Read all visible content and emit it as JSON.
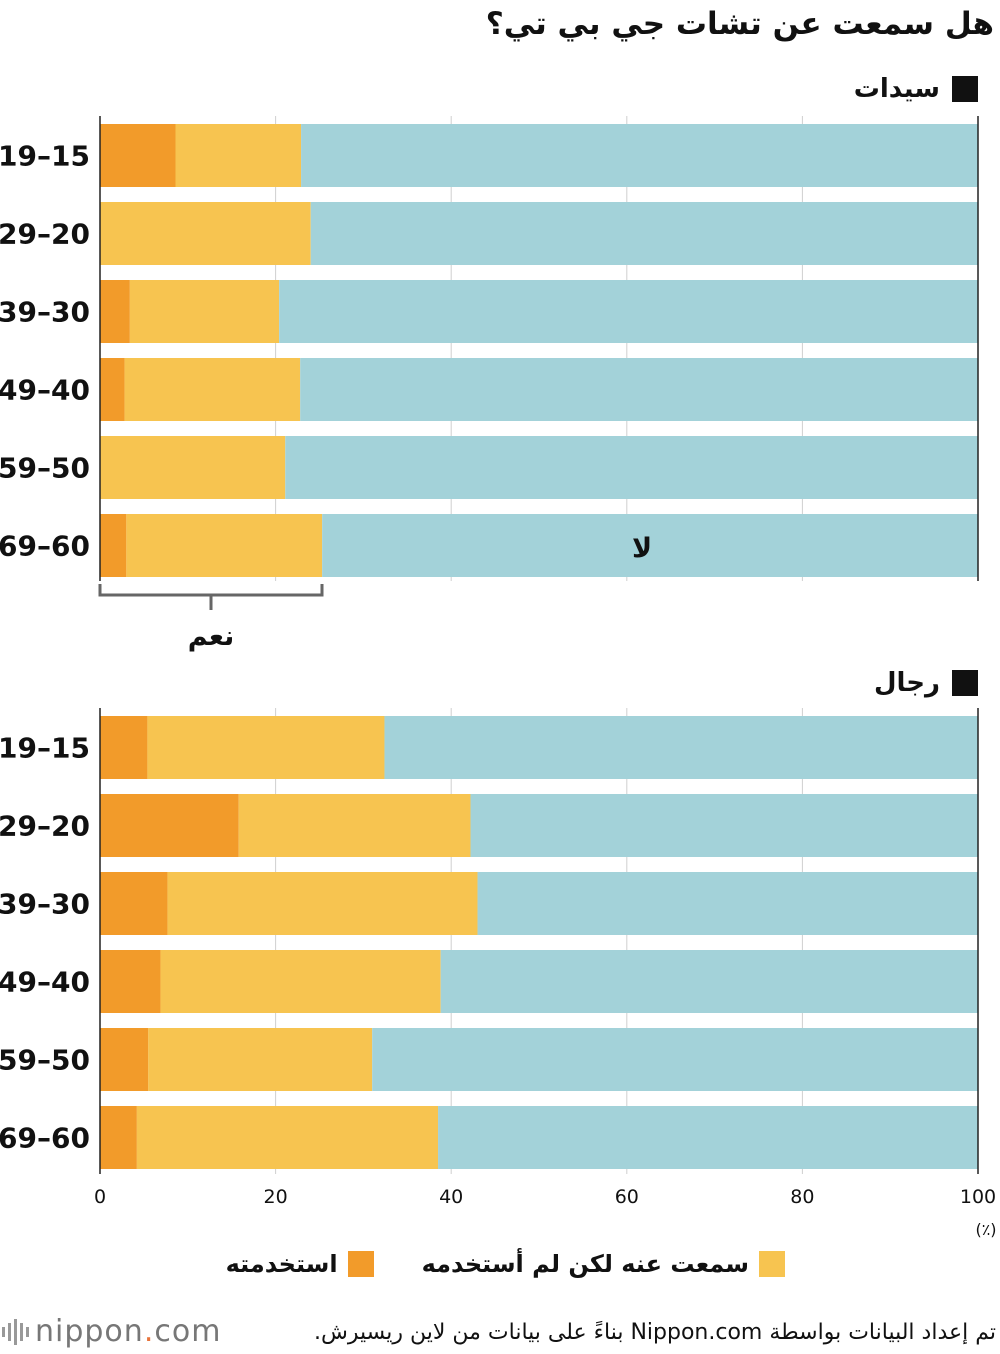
{
  "title": "هل سمعت عن تشات جي بي تي؟",
  "sections": {
    "women": {
      "label": "سيدات"
    },
    "men": {
      "label": "رجال"
    }
  },
  "legend": {
    "heard_not_used": "سمعت عنه لكن لم أستخدمه",
    "used": "استخدمته"
  },
  "annotations": {
    "yes": "نعم",
    "no": "لا"
  },
  "colors": {
    "used": "#f29b2a",
    "heard": "#f7c450",
    "no": "#a3d2d9"
  },
  "source": "تم إعداد البيانات بواسطة Nippon.com بناءً على بيانات من لاين ريسيرش.",
  "logo": {
    "name": "nippon",
    "dot": ".",
    "tld": "com"
  },
  "chart_data": [
    {
      "type": "bar",
      "orientation": "horizontal",
      "stacked": true,
      "title": "سيدات",
      "categories": [
        "19–15",
        "29–20",
        "39–30",
        "49–40",
        "59–50",
        "69–60"
      ],
      "series": [
        {
          "name": "استخدمته",
          "values": [
            8.6,
            0,
            3.4,
            2.8,
            0,
            3.0
          ]
        },
        {
          "name": "سمعت عنه لكن لم أستخدمه",
          "values": [
            14.3,
            24.0,
            17.0,
            20.0,
            21.1,
            22.3
          ]
        },
        {
          "name": "لا",
          "values": [
            77.1,
            76.0,
            79.6,
            77.2,
            78.9,
            74.7
          ]
        }
      ],
      "xlim": [
        0,
        100
      ],
      "unit": "(٪)"
    },
    {
      "type": "bar",
      "orientation": "horizontal",
      "stacked": true,
      "title": "رجال",
      "categories": [
        "19–15",
        "29–20",
        "39–30",
        "49–40",
        "59–50",
        "69–60"
      ],
      "series": [
        {
          "name": "استخدمته",
          "values": [
            5.4,
            15.8,
            7.7,
            6.9,
            5.5,
            4.2
          ]
        },
        {
          "name": "سمعت عنه لكن لم أستخدمه",
          "values": [
            27.0,
            26.4,
            35.3,
            31.9,
            25.5,
            34.3
          ]
        },
        {
          "name": "لا",
          "values": [
            67.6,
            57.8,
            57.0,
            61.2,
            69.0,
            61.5
          ]
        }
      ],
      "xlim": [
        0,
        100
      ],
      "xticks": [
        0,
        20,
        40,
        60,
        80,
        100
      ],
      "unit": "(٪)"
    }
  ]
}
